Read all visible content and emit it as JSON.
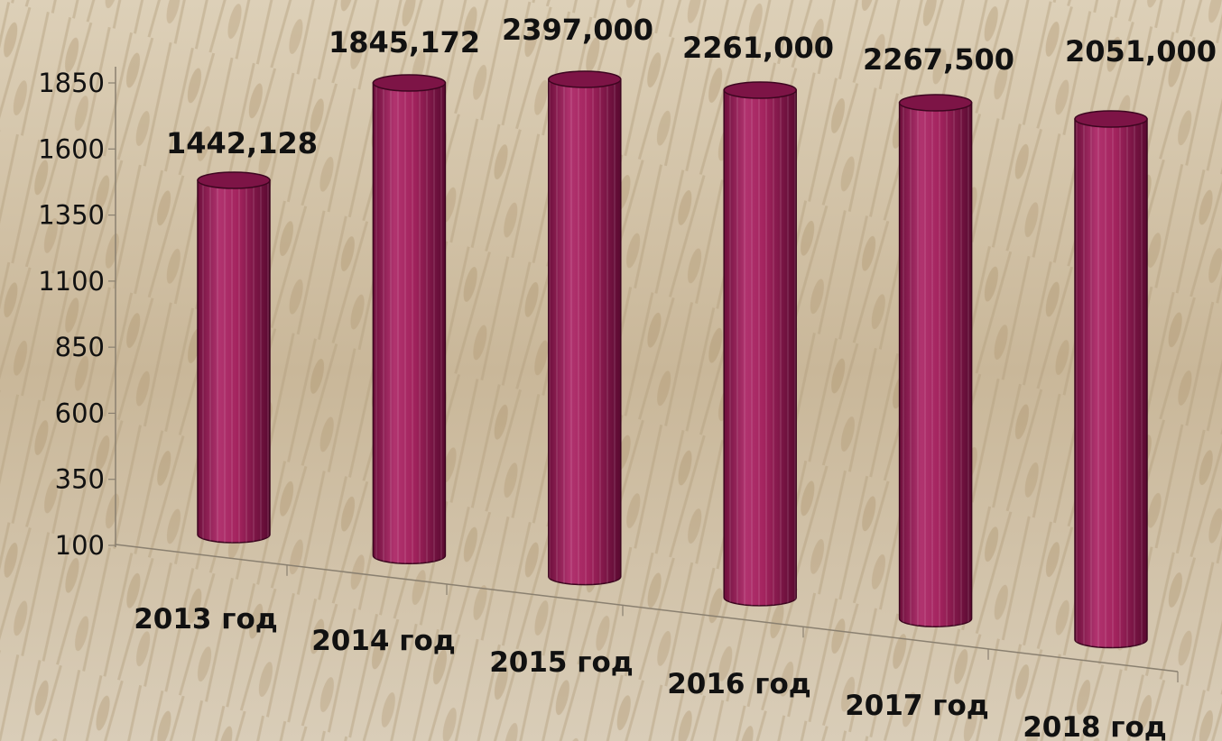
{
  "chart_data": {
    "type": "bar",
    "style": "3d-cylinder",
    "title": "",
    "xlabel": "",
    "ylabel": "",
    "categories": [
      "2013 год",
      "2014 год",
      "2015 год",
      "2016 год",
      "2017 год",
      "2018 год"
    ],
    "series": [
      {
        "values": [
          1442.128,
          1845.172,
          2397.0,
          2261.0,
          2267.5,
          2051.0
        ],
        "data_labels": [
          "1442,128",
          "1845,172",
          "2397,000",
          "2261,000",
          "2267,500",
          "2051,000"
        ]
      }
    ],
    "yticks": [
      100,
      350,
      600,
      850,
      1100,
      1350,
      1600,
      1850
    ],
    "ylim": [
      100,
      1850
    ],
    "grid": false,
    "legend": "none",
    "bar_color": "#9c1f59",
    "background": "photo of wheat field"
  }
}
